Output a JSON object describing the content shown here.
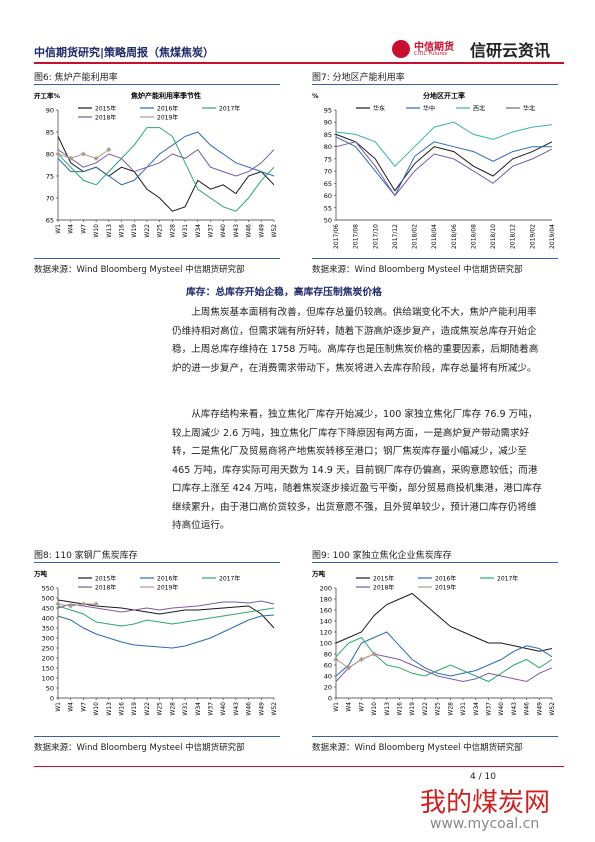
{
  "header": {
    "title": "中信期货研究|策略周报（焦煤焦炭）",
    "logo_cn": "中信期货",
    "logo_en": "CITIC Futures",
    "brand": "信研云资讯"
  },
  "figure_captions": [
    "图6:  焦炉产能利用率",
    "图7:  分地区产能利用率",
    "图8:  110 家钢厂焦炭库存",
    "图9:  100 家独立焦化企业焦炭库存"
  ],
  "sources": [
    "数据来源：Wind Bloomberg Mysteel 中信期货研究部",
    "数据来源：Wind Bloomberg Mysteel 中信期货研究部",
    "数据来源：Wind Bloomberg Mysteel 中信期货研究部",
    "数据来源：Wind Bloomberg Mysteel 中信期货研究部"
  ],
  "section": {
    "heading": "库存：总库存开始企稳，高库存压制焦炭价格",
    "paragraphs": [
      "上周焦炭基本面稍有改善，但库存总量仍较高。供给端变化不大，焦炉产能利用率仍维持相对高位，但需求端有所好转，随着下游高炉逐步复产，造成焦炭总库存开始企稳，上周总库存维持在 1758 万吨。高库存也是压制焦炭价格的重要因素，后期随着高炉的进一步复产，在消费需求带动下，焦炭将进入去库存阶段，库存总量将有所减少。",
      "从库存结构来看，独立焦化厂库存开始减少，100 家独立焦化厂库存 76.9 万吨，较上周减少 2.6 万吨，独立焦化厂库存下降原因有两方面，一是高炉复产带动需求好转，二是焦化厂及贸易商将产地焦炭转移至港口；钢厂焦炭库存量小幅减少，减少至 465 万吨，库存实际可用天数为 14.9 天，目前钢厂库存仍偏高，采购意愿较低；而港口库存上涨至 424 万吨，随着焦炭逐步接近盈亏平衡，部分贸易商投机集港，港口库存继续累升，由于港口高价货较多，出货意愿不强，且外贸单较少，预计港口库存仍将维持高位运行。"
    ]
  },
  "footer": {
    "page": "4 / 10",
    "watermark": "我的煤炭网",
    "url": "www.mycoal.cn"
  },
  "chart_data": [
    {
      "type": "line",
      "title": "焦炉产能利用率季节性",
      "y_label": "开工率%",
      "xlim": [
        1,
        52
      ],
      "x": [
        1,
        4,
        7,
        10,
        13,
        16,
        19,
        22,
        25,
        28,
        31,
        34,
        37,
        40,
        43,
        46,
        49,
        52
      ],
      "xticks": [
        {
          "value": 1,
          "label": "W1"
        },
        {
          "value": 4,
          "label": "W4"
        },
        {
          "value": 7,
          "label": "W7"
        },
        {
          "value": 10,
          "label": "W10"
        },
        {
          "value": 13,
          "label": "W13"
        },
        {
          "value": 16,
          "label": "W16"
        },
        {
          "value": 19,
          "label": "W19"
        },
        {
          "value": 22,
          "label": "W22"
        },
        {
          "value": 25,
          "label": "W25"
        },
        {
          "value": 28,
          "label": "W28"
        },
        {
          "value": 31,
          "label": "W31"
        },
        {
          "value": 34,
          "label": "W34"
        },
        {
          "value": 37,
          "label": "W37"
        },
        {
          "value": 40,
          "label": "W40"
        },
        {
          "value": 43,
          "label": "W43"
        },
        {
          "value": 46,
          "label": "W46"
        },
        {
          "value": 49,
          "label": "W49"
        },
        {
          "value": 52,
          "label": "W52"
        }
      ],
      "ylim": [
        65,
        90
      ],
      "yticks": [
        65,
        70,
        75,
        80,
        85,
        90
      ],
      "series": [
        {
          "name": "2015年",
          "color": "#1a1a1a",
          "values": [
            84,
            78,
            76,
            77,
            75,
            77,
            76,
            72,
            70,
            67,
            68,
            74,
            72,
            73,
            71,
            75,
            76,
            73
          ]
        },
        {
          "name": "2016年",
          "color": "#2a6bb5",
          "values": [
            79,
            76,
            76,
            77,
            75,
            73,
            74,
            77,
            80,
            82,
            84,
            85,
            82,
            80,
            78,
            77,
            76,
            75
          ]
        },
        {
          "name": "2017年",
          "color": "#2aa86b",
          "values": [
            80,
            77,
            74,
            73,
            76,
            79,
            82,
            86,
            86,
            84,
            78,
            72,
            70,
            68,
            67,
            70,
            74,
            77
          ]
        },
        {
          "name": "2018年",
          "color": "#7a5aa6",
          "values": [
            81,
            79,
            77,
            78,
            80,
            79,
            76,
            77,
            78,
            80,
            79,
            81,
            77,
            76,
            75,
            76,
            78,
            81
          ]
        },
        {
          "name": "2019年",
          "color": "#b09a88",
          "marker": true,
          "values": [
            80,
            79,
            80,
            79,
            81,
            null,
            null,
            null,
            null,
            null,
            null,
            null,
            null,
            null,
            null,
            null,
            null,
            null
          ]
        }
      ]
    },
    {
      "type": "line",
      "title": "分地区开工率",
      "y_label": "%",
      "categories": [
        "2017/06",
        "2017/08",
        "2017/10",
        "2017/12",
        "2018/02",
        "2018/04",
        "2018/06",
        "2018/08",
        "2018/10",
        "2018/12",
        "2019/02",
        "2019/04"
      ],
      "ylim": [
        50,
        95
      ],
      "yticks": [
        50,
        55,
        60,
        65,
        70,
        75,
        80,
        85,
        90,
        95
      ],
      "series": [
        {
          "name": "华东",
          "color": "#1a1a1a",
          "values": [
            85,
            82,
            75,
            62,
            73,
            80,
            78,
            72,
            68,
            75,
            78,
            82
          ]
        },
        {
          "name": "华中",
          "color": "#2a6bb5",
          "values": [
            84,
            80,
            70,
            60,
            76,
            82,
            80,
            78,
            74,
            78,
            80,
            80
          ]
        },
        {
          "name": "西北",
          "color": "#39b5a5",
          "values": [
            86,
            85,
            82,
            72,
            80,
            88,
            90,
            85,
            83,
            86,
            88,
            89
          ]
        },
        {
          "name": "华北",
          "color": "#7a5aa6",
          "values": [
            80,
            82,
            72,
            60,
            70,
            77,
            75,
            70,
            65,
            72,
            75,
            79
          ]
        }
      ]
    },
    {
      "type": "line",
      "y_label": "万吨",
      "xlim": [
        1,
        52
      ],
      "x": [
        1,
        4,
        7,
        10,
        13,
        16,
        19,
        22,
        25,
        28,
        31,
        34,
        37,
        40,
        43,
        46,
        49,
        52
      ],
      "xticks": [
        {
          "value": 1,
          "label": "W1"
        },
        {
          "value": 4,
          "label": "W4"
        },
        {
          "value": 7,
          "label": "W7"
        },
        {
          "value": 10,
          "label": "W10"
        },
        {
          "value": 13,
          "label": "W13"
        },
        {
          "value": 16,
          "label": "W16"
        },
        {
          "value": 19,
          "label": "W19"
        },
        {
          "value": 22,
          "label": "W22"
        },
        {
          "value": 25,
          "label": "W25"
        },
        {
          "value": 28,
          "label": "W28"
        },
        {
          "value": 31,
          "label": "W31"
        },
        {
          "value": 34,
          "label": "W34"
        },
        {
          "value": 37,
          "label": "W37"
        },
        {
          "value": 40,
          "label": "W40"
        },
        {
          "value": 43,
          "label": "W43"
        },
        {
          "value": 46,
          "label": "W46"
        },
        {
          "value": 49,
          "label": "W49"
        },
        {
          "value": 52,
          "label": "W52"
        }
      ],
      "ylim": [
        0,
        550
      ],
      "yticks": [
        0,
        50,
        100,
        150,
        200,
        250,
        300,
        350,
        400,
        450,
        500,
        550
      ],
      "series": [
        {
          "name": "2015年",
          "color": "#1a1a1a",
          "values": [
            490,
            480,
            470,
            460,
            455,
            450,
            440,
            430,
            420,
            430,
            440,
            440,
            445,
            450,
            455,
            460,
            420,
            350
          ]
        },
        {
          "name": "2016年",
          "color": "#2a6bb5",
          "values": [
            410,
            390,
            350,
            320,
            300,
            280,
            265,
            260,
            255,
            250,
            260,
            280,
            300,
            330,
            360,
            390,
            410,
            415
          ]
        },
        {
          "name": "2017年",
          "color": "#2aa86b",
          "values": [
            460,
            440,
            420,
            380,
            370,
            360,
            370,
            390,
            380,
            370,
            380,
            390,
            400,
            410,
            420,
            430,
            440,
            450
          ]
        },
        {
          "name": "2018年",
          "color": "#7a5aa6",
          "values": [
            450,
            470,
            460,
            450,
            440,
            430,
            440,
            450,
            440,
            450,
            455,
            460,
            470,
            480,
            480,
            475,
            485,
            470
          ]
        },
        {
          "name": "2019年",
          "color": "#b09a88",
          "marker": true,
          "values": [
            470,
            460,
            470,
            470,
            null,
            null,
            null,
            null,
            null,
            null,
            null,
            null,
            null,
            null,
            null,
            null,
            null,
            null
          ]
        }
      ]
    },
    {
      "type": "line",
      "y_label": "万吨",
      "xlim": [
        1,
        52
      ],
      "x": [
        1,
        4,
        7,
        10,
        13,
        16,
        19,
        22,
        25,
        28,
        31,
        34,
        37,
        40,
        43,
        46,
        49,
        52
      ],
      "xticks": [
        {
          "value": 1,
          "label": "W1"
        },
        {
          "value": 4,
          "label": "W4"
        },
        {
          "value": 7,
          "label": "W7"
        },
        {
          "value": 10,
          "label": "W10"
        },
        {
          "value": 13,
          "label": "W13"
        },
        {
          "value": 16,
          "label": "W16"
        },
        {
          "value": 19,
          "label": "W19"
        },
        {
          "value": 22,
          "label": "W22"
        },
        {
          "value": 25,
          "label": "W25"
        },
        {
          "value": 28,
          "label": "W28"
        },
        {
          "value": 31,
          "label": "W31"
        },
        {
          "value": 34,
          "label": "W34"
        },
        {
          "value": 37,
          "label": "W37"
        },
        {
          "value": 40,
          "label": "W40"
        },
        {
          "value": 43,
          "label": "W43"
        },
        {
          "value": 46,
          "label": "W46"
        },
        {
          "value": 49,
          "label": "W49"
        },
        {
          "value": 52,
          "label": "W52"
        }
      ],
      "ylim": [
        0,
        200
      ],
      "yticks": [
        0,
        20,
        40,
        60,
        80,
        100,
        120,
        140,
        160,
        180,
        200
      ],
      "series": [
        {
          "name": "2015年",
          "color": "#1a1a1a",
          "values": [
            100,
            110,
            120,
            150,
            170,
            180,
            190,
            170,
            150,
            130,
            120,
            110,
            100,
            100,
            95,
            90,
            85,
            90
          ]
        },
        {
          "name": "2016年",
          "color": "#2a6bb5",
          "values": [
            40,
            60,
            100,
            110,
            120,
            95,
            70,
            55,
            45,
            40,
            45,
            50,
            60,
            70,
            85,
            95,
            90,
            75
          ]
        },
        {
          "name": "2017年",
          "color": "#2aa86b",
          "values": [
            75,
            100,
            110,
            80,
            60,
            55,
            45,
            40,
            50,
            60,
            50,
            40,
            30,
            45,
            60,
            70,
            55,
            70
          ]
        },
        {
          "name": "2018年",
          "color": "#7a5aa6",
          "values": [
            30,
            55,
            70,
            80,
            75,
            70,
            60,
            50,
            40,
            35,
            30,
            35,
            45,
            40,
            35,
            30,
            45,
            55
          ]
        },
        {
          "name": "2019年",
          "color": "#b09a88",
          "marker": true,
          "values": [
            70,
            55,
            70,
            80,
            null,
            null,
            null,
            null,
            null,
            null,
            null,
            null,
            null,
            null,
            null,
            null,
            null,
            null
          ]
        }
      ]
    }
  ]
}
